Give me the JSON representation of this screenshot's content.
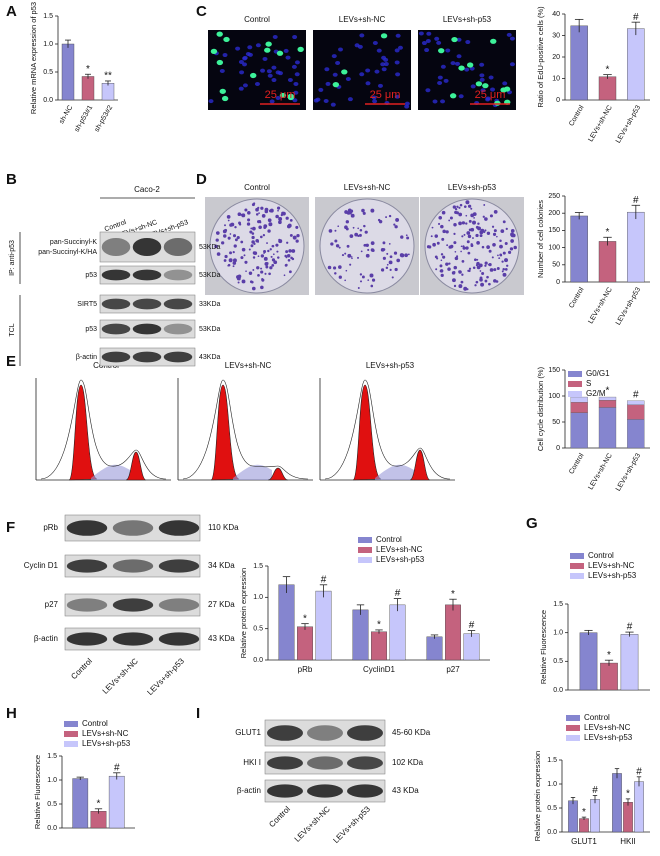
{
  "panel_labels": [
    "A",
    "B",
    "C",
    "D",
    "E",
    "F",
    "G",
    "H",
    "I"
  ],
  "microscopy": {
    "labels": [
      "Control",
      "LEVs+sh-NC",
      "LEVs+sh-p53"
    ],
    "scale_bar": "25 μm"
  },
  "colony": {
    "labels": [
      "Control",
      "LEVs+sh-NC",
      "LEVs+sh-p53"
    ]
  },
  "flow": {
    "labels": [
      "Control",
      "LEVs+sh-NC",
      "LEVs+sh-p53"
    ]
  },
  "blot_B": {
    "cell_line": "Caco-2",
    "lanes": [
      "Control",
      "LEVs+sh-NC",
      "LEVs+sh-p53"
    ],
    "ip_label": "IP: anti-p53",
    "tcl_label": "TCL",
    "rows": [
      "pan-Succinyl-K",
      "pan-Succinyl-K/HA",
      "p53",
      "SIRT5",
      "p53",
      "β-actin"
    ],
    "sizes": [
      "53KDa",
      "53KDa",
      "33KDa",
      "53KDa",
      "43KDa"
    ]
  },
  "blot_F": {
    "rows": [
      "pRb",
      "Cyclin D1",
      "p27",
      "β-actin"
    ],
    "sizes": [
      "110 KDa",
      "34 KDa",
      "27 KDa",
      "43 KDa"
    ],
    "lanes": [
      "Control",
      "LEVs+sh-NC",
      "LEVs+sh-p53"
    ]
  },
  "blot_I": {
    "rows": [
      "GLUT1",
      "HKI I",
      "β-actin"
    ],
    "sizes": [
      "45-60 KDa",
      "102 KDa",
      "43 KDa"
    ],
    "lanes": [
      "Control",
      "LEVs+sh-NC",
      "LEVs+sh-p53"
    ]
  },
  "chart_data": [
    {
      "type": "bar",
      "ylabel": "Relative mRNA expression of p53",
      "categories": [
        "sh-NC",
        "sh-p53#1",
        "sh-p53#2"
      ],
      "values": [
        1.0,
        0.42,
        0.3
      ],
      "errors": [
        0.07,
        0.04,
        0.04
      ],
      "annotations": [
        null,
        "*",
        "**"
      ],
      "colors": [
        "#8585cf",
        "#c4627e",
        "#c6c6fb"
      ],
      "ylim": [
        0,
        1.5
      ],
      "yticks": [
        {
          "value": 0,
          "label": "0.0"
        },
        {
          "value": 0.5,
          "label": "0.5"
        },
        {
          "value": 1,
          "label": "1.0"
        },
        {
          "value": 1.5,
          "label": "1.5"
        }
      ]
    },
    {
      "type": "bar",
      "ylabel": "Ratio of EdU-positive cells (%)",
      "categories": [
        "Control",
        "LEVs+sh-NC",
        "LEVs+sh-p53"
      ],
      "values": [
        34.5,
        10.8,
        33.2
      ],
      "errors": [
        3,
        1,
        3
      ],
      "annotations": [
        null,
        "*",
        "#"
      ],
      "colors": [
        "#8585cf",
        "#c4627e",
        "#c6c6fb"
      ],
      "ylim": [
        0,
        40
      ],
      "yticks": [
        0,
        10,
        20,
        30,
        40
      ]
    },
    {
      "type": "bar",
      "ylabel": "Number of cell colonies",
      "categories": [
        "Control",
        "LEVs+sh-NC",
        "LEVs+sh-p53"
      ],
      "values": [
        192,
        118,
        203
      ],
      "errors": [
        10,
        12,
        20
      ],
      "annotations": [
        null,
        "*",
        "#"
      ],
      "colors": [
        "#8585cf",
        "#c4627e",
        "#c6c6fb"
      ],
      "ylim": [
        0,
        250
      ],
      "yticks": [
        0,
        50,
        100,
        150,
        200,
        250
      ]
    },
    {
      "type": "stacked_bar",
      "ylabel": "Cell cycle distribution (%)",
      "categories": [
        "Control",
        "LEVs+sh-NC",
        "LEVs+sh-p53"
      ],
      "series": [
        {
          "name": "G0/G1",
          "color": "#8585cf",
          "values": [
            68,
            78,
            55
          ]
        },
        {
          "name": "S",
          "color": "#c4627e",
          "values": [
            20,
            14,
            28
          ]
        },
        {
          "name": "G2/M",
          "color": "#c6c6fb",
          "values": [
            10,
            6,
            8
          ]
        }
      ],
      "annotations": [
        null,
        "*",
        "#"
      ],
      "ylim": [
        0,
        150
      ],
      "yticks": [
        0,
        50,
        100,
        150
      ]
    },
    {
      "type": "grouped_bar",
      "ylabel": "Relative protein expression",
      "categories": [
        "pRb",
        "CyclinD1",
        "p27"
      ],
      "series": [
        {
          "name": "Control",
          "color": "#8585cf",
          "values": [
            1.2,
            0.8,
            0.37
          ],
          "errors": [
            0.13,
            0.08,
            0.03
          ]
        },
        {
          "name": "LEVs+sh-NC",
          "color": "#c4627e",
          "values": [
            0.53,
            0.45,
            0.88
          ],
          "errors": [
            0.05,
            0.03,
            0.09
          ],
          "annotations": [
            "*",
            "*",
            "*"
          ]
        },
        {
          "name": "LEVs+sh-p53",
          "color": "#c6c6fb",
          "values": [
            1.1,
            0.88,
            0.42
          ],
          "errors": [
            0.1,
            0.1,
            0.05
          ],
          "annotations": [
            "#",
            "#",
            "#"
          ]
        }
      ],
      "ylim": [
        0,
        1.5
      ],
      "yticks": [
        {
          "value": 0,
          "label": "0.0"
        },
        {
          "value": 0.5,
          "label": "0.5"
        },
        {
          "value": 1,
          "label": "1.0"
        },
        {
          "value": 1.5,
          "label": "1.5"
        }
      ]
    },
    {
      "type": "grouped_bar",
      "ylabel": "Relative Fluorescence",
      "categories": [
        null
      ],
      "series": [
        {
          "name": "Control",
          "color": "#8585cf",
          "values": [
            1.0
          ],
          "errors": [
            0.04
          ]
        },
        {
          "name": "LEVs+sh-NC",
          "color": "#c4627e",
          "values": [
            0.47
          ],
          "errors": [
            0.05
          ],
          "annotations": [
            "*"
          ]
        },
        {
          "name": "LEVs+sh-p53",
          "color": "#c6c6fb",
          "values": [
            0.97
          ],
          "errors": [
            0.04
          ],
          "annotations": [
            "#"
          ]
        }
      ],
      "ylim": [
        0,
        1.5
      ],
      "yticks": [
        {
          "value": 0,
          "label": "0.0"
        },
        {
          "value": 0.5,
          "label": "0.5"
        },
        {
          "value": 1,
          "label": "1.0"
        },
        {
          "value": 1.5,
          "label": "1.5"
        }
      ]
    },
    {
      "type": "grouped_bar",
      "ylabel": "Relative Fluorescence",
      "categories": [
        null
      ],
      "series": [
        {
          "name": "Control",
          "color": "#8585cf",
          "values": [
            1.03
          ],
          "errors": [
            0.03
          ]
        },
        {
          "name": "LEVs+sh-NC",
          "color": "#c4627e",
          "values": [
            0.35
          ],
          "errors": [
            0.05
          ],
          "annotations": [
            "*"
          ]
        },
        {
          "name": "LEVs+sh-p53",
          "color": "#c6c6fb",
          "values": [
            1.08
          ],
          "errors": [
            0.07
          ],
          "annotations": [
            "#"
          ]
        }
      ],
      "ylim": [
        0,
        1.5
      ],
      "yticks": [
        {
          "value": 0,
          "label": "0.0"
        },
        {
          "value": 0.5,
          "label": "0.5"
        },
        {
          "value": 1,
          "label": "1.0"
        },
        {
          "value": 1.5,
          "label": "1.5"
        }
      ]
    },
    {
      "type": "grouped_bar",
      "ylabel": "Relative protein expression",
      "categories": [
        "GLUT1",
        "HKII"
      ],
      "series": [
        {
          "name": "Control",
          "color": "#8585cf",
          "values": [
            0.65,
            1.22
          ],
          "errors": [
            0.07,
            0.1
          ]
        },
        {
          "name": "LEVs+sh-NC",
          "color": "#c4627e",
          "values": [
            0.28,
            0.62
          ],
          "errors": [
            0.03,
            0.07
          ],
          "annotations": [
            "*",
            "*"
          ]
        },
        {
          "name": "LEVs+sh-p53",
          "color": "#c6c6fb",
          "values": [
            0.68,
            1.05
          ],
          "errors": [
            0.08,
            0.1
          ],
          "annotations": [
            "#",
            "#"
          ]
        }
      ],
      "ylim": [
        0,
        1.5
      ],
      "yticks": [
        {
          "value": 0,
          "label": "0.0"
        },
        {
          "value": 0.5,
          "label": "0.5"
        },
        {
          "value": 1,
          "label": "1.0"
        },
        {
          "value": 1.5,
          "label": "1.5"
        }
      ]
    }
  ]
}
